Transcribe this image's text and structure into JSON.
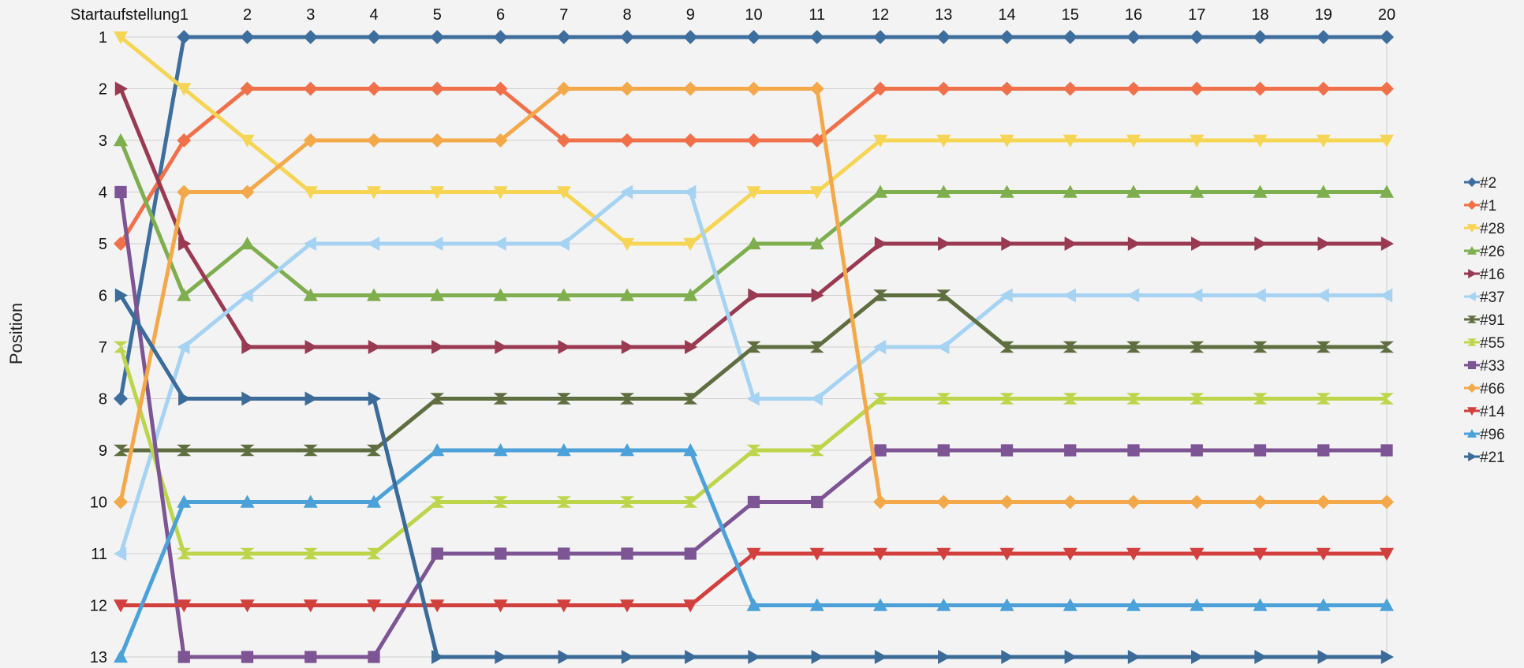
{
  "chart_data": {
    "type": "line",
    "ylabel": "Position",
    "y_reversed": true,
    "ylim": [
      1,
      13
    ],
    "y_ticks": [
      "1",
      "2",
      "3",
      "4",
      "5",
      "6",
      "7",
      "8",
      "9",
      "10",
      "11",
      "12",
      "13"
    ],
    "categories": [
      "Startaufstellung",
      "1",
      "2",
      "3",
      "4",
      "5",
      "6",
      "7",
      "8",
      "9",
      "10",
      "11",
      "12",
      "13",
      "14",
      "15",
      "16",
      "17",
      "18",
      "19",
      "20"
    ],
    "legend_position": "right",
    "grid": true,
    "series": [
      {
        "name": "#2",
        "color": "#3d6e9e",
        "marker": "diamond",
        "values": [
          8,
          1,
          1,
          1,
          1,
          1,
          1,
          1,
          1,
          1,
          1,
          1,
          1,
          1,
          1,
          1,
          1,
          1,
          1,
          1,
          1
        ]
      },
      {
        "name": "#1",
        "color": "#f0704a",
        "marker": "diamond",
        "values": [
          5,
          3,
          2,
          2,
          2,
          2,
          2,
          3,
          3,
          3,
          3,
          3,
          2,
          2,
          2,
          2,
          2,
          2,
          2,
          2,
          2
        ]
      },
      {
        "name": "#28",
        "color": "#f5d553",
        "marker": "triangle-down",
        "values": [
          1,
          2,
          3,
          4,
          4,
          4,
          4,
          4,
          5,
          5,
          4,
          4,
          3,
          3,
          3,
          3,
          3,
          3,
          3,
          3,
          3
        ]
      },
      {
        "name": "#26",
        "color": "#7eae4e",
        "marker": "triangle-up",
        "values": [
          3,
          6,
          5,
          6,
          6,
          6,
          6,
          6,
          6,
          6,
          5,
          5,
          4,
          4,
          4,
          4,
          4,
          4,
          4,
          4,
          4
        ]
      },
      {
        "name": "#16",
        "color": "#993a52",
        "marker": "triangle-right",
        "values": [
          2,
          5,
          7,
          7,
          7,
          7,
          7,
          7,
          7,
          7,
          6,
          6,
          5,
          5,
          5,
          5,
          5,
          5,
          5,
          5,
          5
        ]
      },
      {
        "name": "#37",
        "color": "#a6d3f2",
        "marker": "triangle-left",
        "values": [
          11,
          7,
          6,
          5,
          5,
          5,
          5,
          5,
          4,
          4,
          8,
          8,
          7,
          7,
          6,
          6,
          6,
          6,
          6,
          6,
          6
        ]
      },
      {
        "name": "#91",
        "color": "#5f6e40",
        "marker": "bowtie",
        "values": [
          9,
          9,
          9,
          9,
          9,
          8,
          8,
          8,
          8,
          8,
          7,
          7,
          6,
          6,
          7,
          7,
          7,
          7,
          7,
          7,
          7
        ]
      },
      {
        "name": "#55",
        "color": "#bcd54a",
        "marker": "hourglass",
        "values": [
          7,
          11,
          11,
          11,
          11,
          10,
          10,
          10,
          10,
          10,
          9,
          9,
          8,
          8,
          8,
          8,
          8,
          8,
          8,
          8,
          8
        ]
      },
      {
        "name": "#33",
        "color": "#7d5494",
        "marker": "square",
        "values": [
          4,
          13,
          13,
          13,
          13,
          11,
          11,
          11,
          11,
          11,
          10,
          10,
          9,
          9,
          9,
          9,
          9,
          9,
          9,
          9,
          9
        ]
      },
      {
        "name": "#66",
        "color": "#f3a84a",
        "marker": "diamond",
        "values": [
          10,
          4,
          4,
          3,
          3,
          3,
          3,
          2,
          2,
          2,
          2,
          2,
          10,
          10,
          10,
          10,
          10,
          10,
          10,
          10,
          10
        ]
      },
      {
        "name": "#14",
        "color": "#d2403e",
        "marker": "triangle-down",
        "values": [
          12,
          12,
          12,
          12,
          12,
          12,
          12,
          12,
          12,
          12,
          11,
          11,
          11,
          11,
          11,
          11,
          11,
          11,
          11,
          11,
          11
        ]
      },
      {
        "name": "#96",
        "color": "#4ba1d8",
        "marker": "triangle-up",
        "values": [
          13,
          10,
          10,
          10,
          10,
          9,
          9,
          9,
          9,
          9,
          12,
          12,
          12,
          12,
          12,
          12,
          12,
          12,
          12,
          12,
          12
        ]
      },
      {
        "name": "#21",
        "color": "#3b6b99",
        "marker": "triangle-right",
        "values": [
          6,
          8,
          8,
          8,
          8,
          13,
          13,
          13,
          13,
          13,
          13,
          13,
          13,
          13,
          13,
          13,
          13,
          13,
          13,
          13,
          13
        ]
      }
    ]
  }
}
